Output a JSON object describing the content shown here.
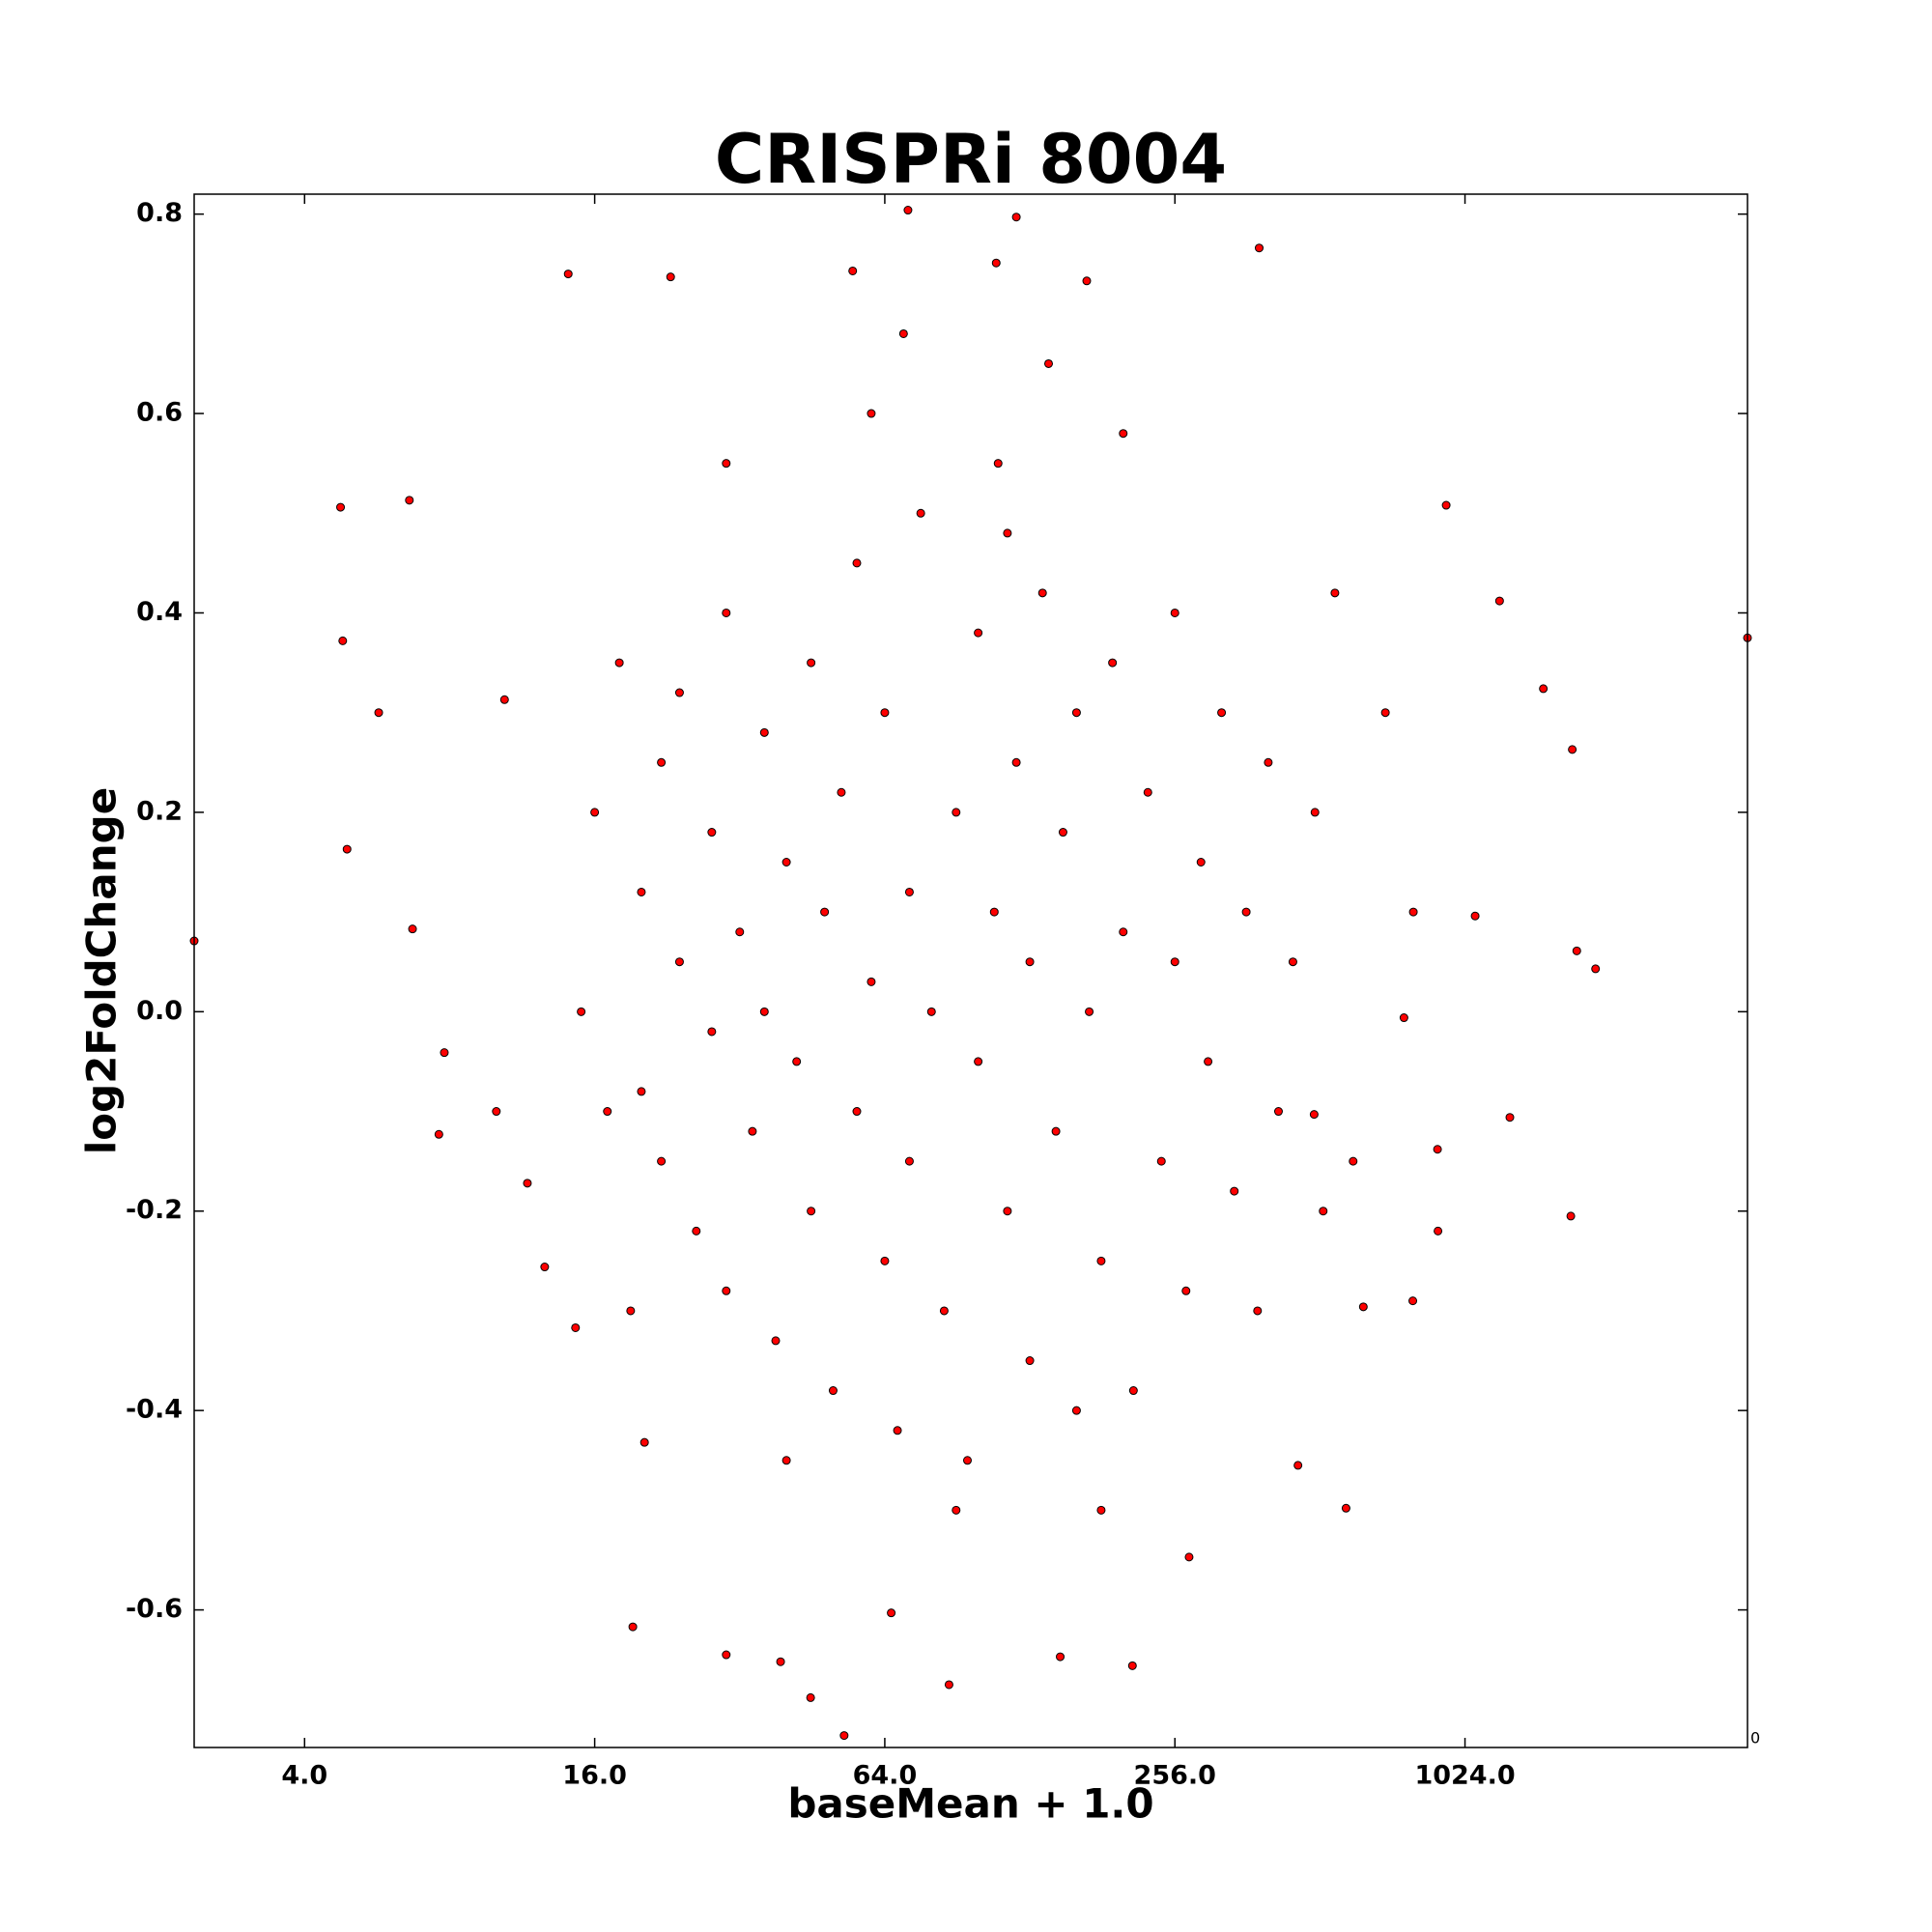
{
  "chart_data": {
    "type": "scatter",
    "title": "CRISPRi 8004",
    "x_label": "baseMean + 1.0",
    "y_label": "log2FoldChange",
    "annotation": "0",
    "xscale": "log2",
    "color": "#ff0000",
    "edge_color": "#000000",
    "xlim": [
      2.36,
      3950
    ],
    "ylim": [
      -0.738,
      0.82
    ],
    "xticks": [
      {
        "value": 4,
        "label": "4.0"
      },
      {
        "value": 16,
        "label": "16.0"
      },
      {
        "value": 64,
        "label": "64.0"
      },
      {
        "value": 256,
        "label": "256.0"
      },
      {
        "value": 1024,
        "label": "1024.0"
      }
    ],
    "yticks": [
      -0.6,
      -0.4,
      -0.2,
      {
        "value": 0,
        "label": "0.0"
      },
      0.2,
      0.4,
      0.6,
      0.8
    ],
    "x": [
      4.75,
      4.8,
      4.9,
      5.7,
      6.6,
      6.7,
      7.6,
      7.8,
      10.4,
      10.0,
      11.6,
      12.6,
      14.1,
      14.6,
      19.2,
      23,
      20.3,
      30,
      38.9,
      44.9,
      52.7,
      54.9,
      71.5,
      87,
      109,
      120,
      168,
      209,
      383,
      580,
      936,
      1208,
      1489,
      1710,
      1911,
      1747,
      1698,
      1269,
      898,
      765,
      630,
      461,
      3950,
      2.36,
      274,
      148,
      66,
      498,
      798,
      1075,
      20,
      20,
      22,
      22,
      24,
      24,
      26,
      28,
      28,
      30,
      30,
      32,
      34,
      36,
      36,
      38,
      40,
      42,
      45,
      45,
      48,
      50,
      52,
      56,
      56,
      60,
      64,
      64,
      68,
      72,
      72,
      76,
      80,
      85,
      90,
      95,
      100,
      100,
      108,
      115,
      115,
      120,
      128,
      128,
      136,
      145,
      150,
      160,
      160,
      170,
      180,
      190,
      200,
      210,
      225,
      240,
      256,
      256,
      270,
      290,
      300,
      320,
      340,
      360,
      380,
      400,
      420,
      450,
      500,
      520,
      18,
      17,
      16,
      15,
      19,
      550,
      600,
      700,
      800,
      900,
      110,
      90,
      60,
      200,
      180,
      40,
      140,
      70,
      30
    ],
    "values": [
      0.506,
      0.372,
      0.163,
      0.3,
      0.513,
      0.083,
      -0.123,
      -0.041,
      0.313,
      -0.1,
      -0.172,
      -0.256,
      0.74,
      -0.317,
      -0.617,
      0.737,
      -0.432,
      -0.645,
      -0.652,
      -0.688,
      -0.726,
      0.743,
      0.804,
      -0.675,
      0.751,
      0.797,
      0.733,
      -0.656,
      0.766,
      -0.498,
      0.508,
      0.412,
      0.324,
      0.263,
      0.043,
      0.061,
      -0.205,
      -0.106,
      -0.138,
      -0.006,
      -0.296,
      -0.455,
      0.375,
      0.071,
      -0.547,
      -0.647,
      -0.603,
      -0.103,
      -0.29,
      0.096,
      0.12,
      -0.08,
      0.25,
      -0.15,
      0.05,
      0.32,
      -0.22,
      0.18,
      -0.02,
      0.4,
      -0.28,
      0.08,
      -0.12,
      0.28,
      0.0,
      -0.33,
      0.15,
      -0.05,
      0.35,
      -0.2,
      0.1,
      -0.38,
      0.22,
      -0.1,
      0.45,
      0.03,
      -0.25,
      0.3,
      -0.42,
      0.12,
      -0.15,
      0.5,
      0.0,
      -0.3,
      0.2,
      -0.45,
      0.38,
      -0.05,
      0.1,
      -0.2,
      0.48,
      0.25,
      -0.35,
      0.05,
      0.42,
      -0.12,
      0.18,
      -0.4,
      0.3,
      0.0,
      -0.25,
      0.35,
      0.08,
      -0.38,
      0.22,
      -0.15,
      0.05,
      0.4,
      -0.28,
      0.15,
      -0.05,
      0.3,
      -0.18,
      0.1,
      -0.3,
      0.25,
      -0.1,
      0.05,
      0.2,
      -0.2,
      0.35,
      -0.1,
      0.2,
      0.0,
      -0.3,
      0.42,
      -0.15,
      0.3,
      0.1,
      -0.22,
      0.55,
      -0.5,
      0.6,
      0.58,
      -0.5,
      -0.45,
      0.65,
      0.68,
      0.55
    ]
  }
}
